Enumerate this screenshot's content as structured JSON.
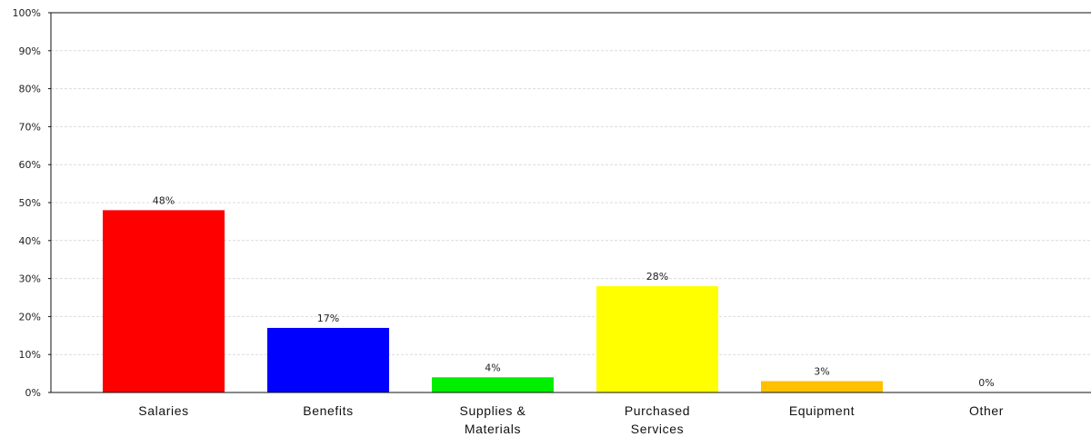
{
  "chart_data": {
    "type": "bar",
    "categories": [
      [
        "Salaries"
      ],
      [
        "Benefits"
      ],
      [
        "Supplies &",
        "Materials"
      ],
      [
        "Purchased",
        "Services"
      ],
      [
        "Equipment"
      ],
      [
        "Other"
      ]
    ],
    "values": [
      48,
      17,
      4,
      28,
      3,
      0
    ],
    "data_labels": [
      "48%",
      "17%",
      "4%",
      "28%",
      "3%",
      "0%"
    ],
    "colors": [
      "#ff0000",
      "#0000ff",
      "#00ee00",
      "#ffff00",
      "#ffc000",
      "#999999"
    ],
    "ylim": [
      0,
      100
    ],
    "yticks": [
      0,
      10,
      20,
      30,
      40,
      50,
      60,
      70,
      80,
      90,
      100
    ],
    "ytick_labels": [
      "0%",
      "10%",
      "20%",
      "30%",
      "40%",
      "50%",
      "60%",
      "70%",
      "80%",
      "90%",
      "100%"
    ],
    "grid": true,
    "title": "",
    "xlabel": "",
    "ylabel": ""
  }
}
